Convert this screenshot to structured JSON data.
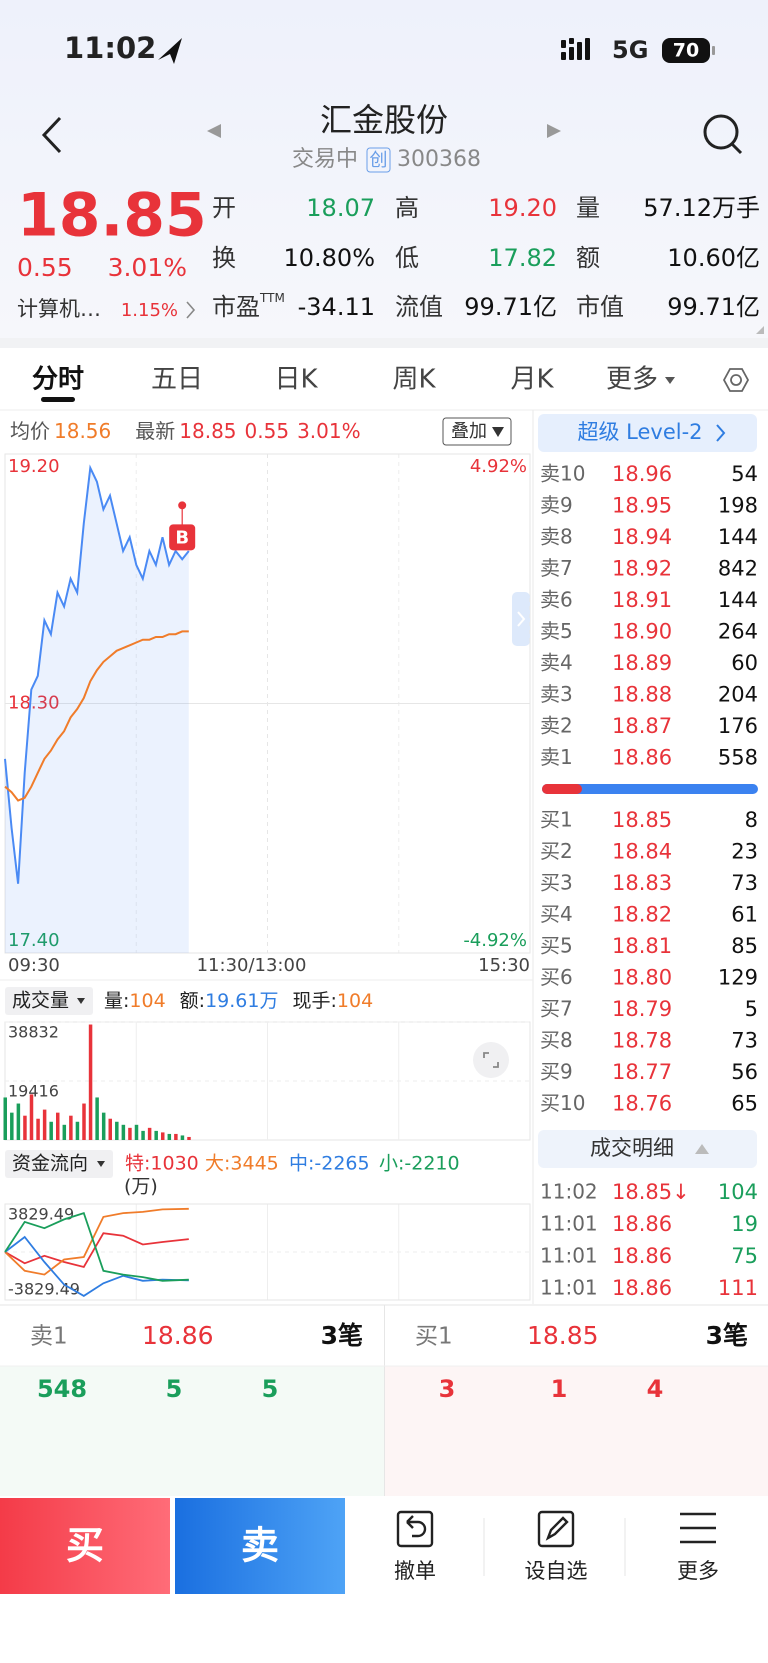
{
  "status_bar": {
    "time": "11:02",
    "network": "5G",
    "battery": "70"
  },
  "header": {
    "title": "汇金股份",
    "status": "交易中",
    "board": "创",
    "code": "300368"
  },
  "quote": {
    "price": "18.85",
    "change": "0.55",
    "change_pct": "3.01%",
    "sector": "计算机…",
    "sector_pct": "1.15%",
    "stats": [
      {
        "label": "开",
        "value": "18.07",
        "color": "#1a9e5b"
      },
      {
        "label": "高",
        "value": "19.20",
        "color": "#e8333a"
      },
      {
        "label": "量",
        "value": "57.12万手"
      },
      {
        "label": "换",
        "value": "10.80%"
      },
      {
        "label": "低",
        "value": "17.82",
        "color": "#1a9e5b"
      },
      {
        "label": "额",
        "value": "10.60亿"
      },
      {
        "label": "市盈",
        "sup": "TTM",
        "value": "-34.11"
      },
      {
        "label": "流值",
        "value": "99.71亿"
      },
      {
        "label": "市值",
        "value": "99.71亿"
      }
    ]
  },
  "tabs": {
    "items": [
      "分时",
      "五日",
      "日K",
      "周K",
      "月K",
      "更多"
    ],
    "active": 0
  },
  "chart_info": {
    "avg_label": "均价",
    "avg": "18.56",
    "latest_label": "最新",
    "latest": "18.85",
    "change": "0.55",
    "change_pct": "3.01%",
    "overlay": "叠加"
  },
  "intraday": {
    "type": "line",
    "x": [
      0,
      3,
      6,
      9,
      12,
      15,
      18,
      21,
      24,
      27,
      30,
      33,
      36,
      39,
      42,
      45,
      48,
      51,
      54,
      57,
      60,
      63,
      66,
      69,
      72,
      75,
      78,
      81,
      84
    ],
    "xlim": [
      0,
      240
    ],
    "xticks": [
      {
        "value": 0,
        "label": "09:30"
      },
      {
        "value": 120,
        "label": "11:30/13:00"
      },
      {
        "value": 240,
        "label": "15:30"
      }
    ],
    "ylim": [
      17.4,
      19.2
    ],
    "yticks": [
      {
        "value": 17.4,
        "label": "17.40"
      },
      {
        "value": 18.3,
        "label": "18.30"
      },
      {
        "value": 19.2,
        "label": "19.20"
      }
    ],
    "y2lim": [
      -4.92,
      4.92
    ],
    "y2ticks": [
      {
        "value": -4.92,
        "label": "-4.92%"
      },
      {
        "value": 4.92,
        "label": "4.92%"
      }
    ],
    "series": [
      {
        "color": "#4a8af4",
        "values": [
          18.1,
          17.85,
          17.65,
          18.05,
          18.35,
          18.4,
          18.6,
          18.55,
          18.7,
          18.65,
          18.75,
          18.7,
          18.95,
          19.15,
          19.1,
          19.0,
          19.05,
          18.95,
          18.85,
          18.9,
          18.8,
          18.75,
          18.85,
          18.8,
          18.9,
          18.8,
          18.85,
          18.82,
          18.85
        ]
      },
      {
        "color": "#f07c2a",
        "values": [
          18.0,
          17.98,
          17.95,
          17.96,
          18.0,
          18.05,
          18.1,
          18.13,
          18.17,
          18.2,
          18.25,
          18.28,
          18.32,
          18.38,
          18.42,
          18.45,
          18.47,
          18.49,
          18.5,
          18.51,
          18.52,
          18.53,
          18.53,
          18.54,
          18.54,
          18.55,
          18.55,
          18.56,
          18.56
        ]
      }
    ],
    "marker": {
      "label": "B",
      "x": 81
    }
  },
  "volume": {
    "type": "bar",
    "label": "成交量",
    "stats": [
      {
        "label": "量:",
        "value": "104",
        "color": "#f07c2a"
      },
      {
        "label": "额:",
        "value": "19.61万",
        "color": "#2f7de1"
      },
      {
        "label": "现手:",
        "value": "104",
        "color": "#f07c2a"
      }
    ],
    "x": [
      0,
      3,
      6,
      9,
      12,
      15,
      18,
      21,
      24,
      27,
      30,
      33,
      36,
      39,
      42,
      45,
      48,
      51,
      54,
      57,
      60,
      63,
      66,
      69,
      72,
      75,
      78,
      81,
      84
    ],
    "xlim": [
      0,
      240
    ],
    "values": [
      14000,
      9000,
      12000,
      8000,
      15000,
      7000,
      10000,
      6000,
      9000,
      5000,
      8000,
      6000,
      12000,
      38000,
      14000,
      9000,
      7000,
      6000,
      5000,
      4000,
      5000,
      3000,
      4000,
      3000,
      2500,
      2000,
      2000,
      1500,
      1000
    ],
    "ylim": [
      0,
      38832
    ],
    "yticks": [
      19416,
      38832
    ]
  },
  "fund_flow": {
    "type": "line",
    "label": "资金流向",
    "unit": "(万)",
    "legend": [
      {
        "text": "特:1030",
        "color": "#e8333a"
      },
      {
        "text": "大:3445",
        "color": "#f07c2a"
      },
      {
        "text": "中:-2265",
        "color": "#2f7de1"
      },
      {
        "text": "小:-2210",
        "color": "#1a9e5b"
      }
    ],
    "x": [
      0,
      9,
      18,
      27,
      36,
      45,
      54,
      63,
      72,
      84
    ],
    "xlim": [
      0,
      240
    ],
    "ylim": [
      -3829.49,
      3829.49
    ],
    "yticks": [
      -3829.49,
      3829.49
    ],
    "series": [
      {
        "color": "#e8333a",
        "values": [
          0,
          -900,
          -300,
          -800,
          -1200,
          1500,
          1300,
          600,
          800,
          1030
        ]
      },
      {
        "color": "#f07c2a",
        "values": [
          0,
          -1500,
          -1800,
          -600,
          -400,
          2800,
          3100,
          3200,
          3400,
          3445
        ]
      },
      {
        "color": "#2f7de1",
        "values": [
          0,
          1200,
          -800,
          -2600,
          -3500,
          -2500,
          -1900,
          -2300,
          -2200,
          -2265
        ]
      },
      {
        "color": "#1a9e5b",
        "values": [
          0,
          2400,
          1900,
          2600,
          3100,
          -1500,
          -1800,
          -2000,
          -2300,
          -2210
        ]
      }
    ]
  },
  "order_book": {
    "level2": "超级 Level-2",
    "asks": [
      [
        "卖10",
        "18.96",
        "54"
      ],
      [
        "卖9",
        "18.95",
        "198"
      ],
      [
        "卖8",
        "18.94",
        "144"
      ],
      [
        "卖7",
        "18.92",
        "842"
      ],
      [
        "卖6",
        "18.91",
        "144"
      ],
      [
        "卖5",
        "18.90",
        "264"
      ],
      [
        "卖4",
        "18.89",
        "60"
      ],
      [
        "卖3",
        "18.88",
        "204"
      ],
      [
        "卖2",
        "18.87",
        "176"
      ],
      [
        "卖1",
        "18.86",
        "558"
      ]
    ],
    "bids": [
      [
        "买1",
        "18.85",
        "8"
      ],
      [
        "买2",
        "18.84",
        "23"
      ],
      [
        "买3",
        "18.83",
        "73"
      ],
      [
        "买4",
        "18.82",
        "61"
      ],
      [
        "买5",
        "18.81",
        "85"
      ],
      [
        "买6",
        "18.80",
        "129"
      ],
      [
        "买7",
        "18.79",
        "5"
      ],
      [
        "买8",
        "18.78",
        "73"
      ],
      [
        "买9",
        "18.77",
        "56"
      ],
      [
        "买10",
        "18.76",
        "65"
      ]
    ],
    "trades_title": "成交明细",
    "trades": [
      {
        "time": "11:02",
        "price": "18.85↓",
        "volume": "104",
        "color": "#1a9e5b"
      },
      {
        "time": "11:01",
        "price": "18.86",
        "volume": "19",
        "color": "#1a9e5b"
      },
      {
        "time": "11:01",
        "price": "18.86",
        "volume": "75",
        "color": "#1a9e5b"
      },
      {
        "time": "11:01",
        "price": "18.86",
        "volume": "111",
        "color": "#e8333a"
      }
    ]
  },
  "bottom_panel": {
    "ask": {
      "label": "卖1",
      "price": "18.86",
      "count": "3笔",
      "queue": [
        "548",
        "5",
        "5"
      ]
    },
    "bid": {
      "label": "买1",
      "price": "18.85",
      "count": "3笔",
      "queue": [
        "3",
        "1",
        "4"
      ]
    }
  },
  "toolbar": {
    "buy": "买",
    "sell": "卖",
    "actions": [
      "撤单",
      "设自选",
      "更多"
    ]
  }
}
